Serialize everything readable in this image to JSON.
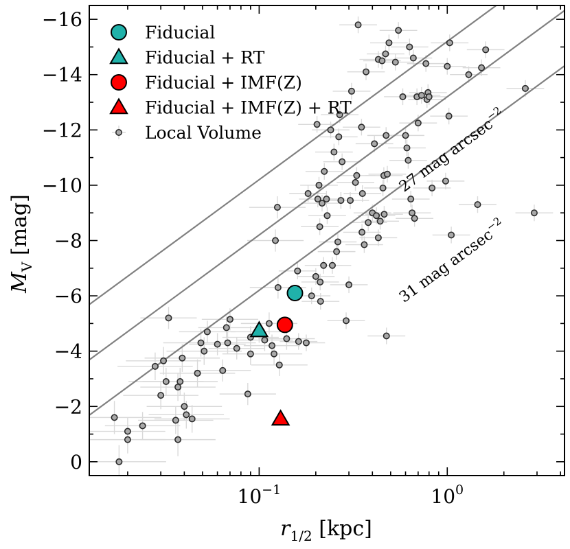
{
  "chart_data": {
    "type": "scatter",
    "xlabel_main": "r",
    "xlabel_sub": "1/2",
    "xlabel_unit": "[kpc]",
    "ylabel_main": "M",
    "ylabel_sub": "V",
    "ylabel_unit": "[mag]",
    "x_scale": "log",
    "xlim": [
      0.0125,
      4.2
    ],
    "ylim": [
      0.5,
      -16.5
    ],
    "y_ticks_major": [
      -16,
      -14,
      -12,
      -10,
      -8,
      -6,
      -4,
      -2,
      0
    ],
    "y_tick_labels": [
      "−16",
      "−14",
      "−12",
      "−10",
      "−8",
      "−6",
      "−4",
      "−2",
      "0"
    ],
    "x_ticks_major": [
      0.1,
      1.0
    ],
    "x_tick_labels": [
      {
        "base": "10",
        "exp": "−1"
      },
      {
        "base": "10",
        "exp": "0"
      }
    ],
    "legend_position": "top-left",
    "legend": [
      {
        "label": "Fiducial",
        "marker": "circle",
        "color": "#20b2aa"
      },
      {
        "label": "Fiducial + RT",
        "marker": "triangle",
        "color": "#20b2aa"
      },
      {
        "label": "Fiducial + IMF(Z)",
        "marker": "circle",
        "color": "#ff0000"
      },
      {
        "label": "Fiducial + IMF(Z) + RT",
        "marker": "triangle",
        "color": "#ff0000"
      },
      {
        "label": "Local Volume",
        "marker": "small-circle",
        "color": "#aaaaaa"
      }
    ],
    "highlight_points": [
      {
        "name": "Fiducial",
        "x": 0.155,
        "y": -6.1,
        "marker": "circle",
        "color": "#20b2aa"
      },
      {
        "name": "Fiducial + RT",
        "x": 0.1,
        "y": -4.75,
        "marker": "triangle",
        "color": "#20b2aa"
      },
      {
        "name": "Fiducial + IMF(Z)",
        "x": 0.137,
        "y": -4.95,
        "marker": "circle",
        "color": "#ff0000"
      },
      {
        "name": "Fiducial + IMF(Z) + RT",
        "x": 0.13,
        "y": -1.55,
        "marker": "triangle",
        "color": "#ff0000"
      }
    ],
    "reference_lines": [
      {
        "slope_per_dex": -5,
        "m_at_r1": -15.2,
        "label": ""
      },
      {
        "slope_per_dex": -5,
        "m_at_r1": -13.2,
        "label": "27 mag arcsec",
        "label_exp": "−2",
        "label_x": 1.1,
        "label_y": -11.1
      },
      {
        "slope_per_dex": -5,
        "m_at_r1": -11.2,
        "label": "31 mag arcsec",
        "label_exp": "−2",
        "label_x": 1.1,
        "label_y": -7.1
      }
    ],
    "local_volume": [
      [
        0.017,
        -1.6,
        0.25,
        0.6
      ],
      [
        0.018,
        0.0,
        0.25,
        0.6
      ],
      [
        0.02,
        -1.1,
        0.2,
        0.5
      ],
      [
        0.02,
        -0.8,
        0.2,
        0.5
      ],
      [
        0.024,
        -1.3,
        0.2,
        0.5
      ],
      [
        0.028,
        -3.45,
        0.2,
        0.5
      ],
      [
        0.03,
        -2.4,
        0.2,
        0.5
      ],
      [
        0.031,
        -3.65,
        0.2,
        0.5
      ],
      [
        0.032,
        -2.9,
        0.2,
        0.5
      ],
      [
        0.033,
        -5.2,
        0.15,
        0.4
      ],
      [
        0.036,
        -1.5,
        0.2,
        0.5
      ],
      [
        0.037,
        -2.7,
        0.2,
        0.5
      ],
      [
        0.037,
        -0.8,
        0.2,
        0.6
      ],
      [
        0.038,
        -2.9,
        0.2,
        0.5
      ],
      [
        0.039,
        -3.75,
        0.2,
        0.5
      ],
      [
        0.04,
        -2.0,
        0.2,
        0.5
      ],
      [
        0.041,
        -1.7,
        0.2,
        0.5
      ],
      [
        0.044,
        -1.55,
        0.2,
        0.5
      ],
      [
        0.047,
        -3.2,
        0.2,
        0.5
      ],
      [
        0.049,
        -4.3,
        0.2,
        0.5
      ],
      [
        0.051,
        -4.0,
        0.2,
        0.5
      ],
      [
        0.053,
        -4.7,
        0.15,
        0.4
      ],
      [
        0.06,
        -4.25,
        0.15,
        0.4
      ],
      [
        0.064,
        -3.3,
        0.15,
        0.4
      ],
      [
        0.067,
        -4.85,
        0.15,
        0.4
      ],
      [
        0.068,
        -4.3,
        0.15,
        0.4
      ],
      [
        0.07,
        -5.15,
        0.15,
        0.4
      ],
      [
        0.076,
        -4.1,
        0.15,
        0.4
      ],
      [
        0.087,
        -2.45,
        0.15,
        0.4
      ],
      [
        0.09,
        -3.9,
        0.15,
        0.4
      ],
      [
        0.09,
        -4.5,
        0.15,
        0.4
      ],
      [
        0.1,
        -4.7,
        0.15,
        0.4
      ],
      [
        0.107,
        -4.4,
        0.15,
        0.4
      ],
      [
        0.113,
        -5.0,
        0.15,
        0.4
      ],
      [
        0.117,
        -4.2,
        0.15,
        0.4
      ],
      [
        0.12,
        -3.9,
        0.15,
        0.4
      ],
      [
        0.122,
        -8.0,
        0.15,
        0.4
      ],
      [
        0.125,
        -9.2,
        0.15,
        0.4
      ],
      [
        0.126,
        -6.3,
        0.15,
        0.4
      ],
      [
        0.128,
        -3.5,
        0.15,
        0.4
      ],
      [
        0.14,
        -4.45,
        0.15,
        0.4
      ],
      [
        0.16,
        -6.9,
        0.1,
        0.3
      ],
      [
        0.162,
        -4.35,
        0.1,
        0.3
      ],
      [
        0.178,
        -4.3,
        0.1,
        0.3
      ],
      [
        0.182,
        -9.7,
        0.1,
        0.3
      ],
      [
        0.19,
        -6.0,
        0.1,
        0.3
      ],
      [
        0.2,
        -6.7,
        0.1,
        0.3
      ],
      [
        0.203,
        -12.2,
        0.1,
        0.3
      ],
      [
        0.205,
        -9.5,
        0.1,
        0.3
      ],
      [
        0.208,
        -10.0,
        0.1,
        0.3
      ],
      [
        0.21,
        -8.5,
        0.1,
        0.3
      ],
      [
        0.211,
        -6.5,
        0.1,
        0.3
      ],
      [
        0.212,
        -5.8,
        0.1,
        0.3
      ],
      [
        0.216,
        -9.35,
        0.1,
        0.3
      ],
      [
        0.22,
        -7.1,
        0.1,
        0.3
      ],
      [
        0.222,
        -10.5,
        0.1,
        0.3
      ],
      [
        0.228,
        -9.5,
        0.1,
        0.3
      ],
      [
        0.23,
        -8.9,
        0.1,
        0.3
      ],
      [
        0.24,
        -12.0,
        0.1,
        0.3
      ],
      [
        0.245,
        -7.1,
        0.1,
        0.3
      ],
      [
        0.25,
        -11.2,
        0.1,
        0.3
      ],
      [
        0.258,
        -7.6,
        0.1,
        0.3
      ],
      [
        0.262,
        -7.95,
        0.1,
        0.3
      ],
      [
        0.265,
        -11.75,
        0.1,
        0.3
      ],
      [
        0.268,
        -12.55,
        0.1,
        0.3
      ],
      [
        0.272,
        -9.45,
        0.1,
        0.3
      ],
      [
        0.276,
        -10.85,
        0.1,
        0.3
      ],
      [
        0.29,
        -5.1,
        0.1,
        0.3
      ],
      [
        0.3,
        -6.4,
        0.1,
        0.3
      ],
      [
        0.305,
        -9.45,
        0.1,
        0.3
      ],
      [
        0.31,
        -13.4,
        0.1,
        0.3
      ],
      [
        0.325,
        -10.1,
        0.1,
        0.3
      ],
      [
        0.33,
        -10.35,
        0.1,
        0.3
      ],
      [
        0.336,
        -15.8,
        0.1,
        0.3
      ],
      [
        0.35,
        -12.1,
        0.1,
        0.3
      ],
      [
        0.352,
        -8.3,
        0.1,
        0.3
      ],
      [
        0.354,
        -9.7,
        0.1,
        0.3
      ],
      [
        0.362,
        -7.85,
        0.1,
        0.3
      ],
      [
        0.37,
        -14.1,
        0.1,
        0.3
      ],
      [
        0.38,
        -8.65,
        0.1,
        0.3
      ],
      [
        0.4,
        -9.0,
        0.1,
        0.3
      ],
      [
        0.41,
        -11.5,
        0.1,
        0.3
      ],
      [
        0.42,
        -8.9,
        0.1,
        0.3
      ],
      [
        0.43,
        -14.55,
        0.1,
        0.3
      ],
      [
        0.43,
        -8.1,
        0.1,
        0.3
      ],
      [
        0.44,
        -8.7,
        0.1,
        0.3
      ],
      [
        0.45,
        -14.5,
        0.1,
        0.3
      ],
      [
        0.455,
        -9.9,
        0.1,
        0.3
      ],
      [
        0.46,
        -10.35,
        0.1,
        0.3
      ],
      [
        0.462,
        -8.95,
        0.1,
        0.3
      ],
      [
        0.47,
        -14.75,
        0.1,
        0.3
      ],
      [
        0.473,
        -11.8,
        0.1,
        0.3
      ],
      [
        0.475,
        -4.55,
        0.1,
        0.3
      ],
      [
        0.48,
        -10.4,
        0.1,
        0.3
      ],
      [
        0.49,
        -15.15,
        0.1,
        0.3
      ],
      [
        0.53,
        -14.45,
        0.1,
        0.3
      ],
      [
        0.55,
        -15.6,
        0.1,
        0.3
      ],
      [
        0.58,
        -13.2,
        0.1,
        0.3
      ],
      [
        0.6,
        -11.8,
        0.1,
        0.3
      ],
      [
        0.61,
        -11.35,
        0.1,
        0.3
      ],
      [
        0.62,
        -10.9,
        0.1,
        0.3
      ],
      [
        0.63,
        -15.0,
        0.1,
        0.3
      ],
      [
        0.64,
        -9.5,
        0.1,
        0.3
      ],
      [
        0.65,
        -9.0,
        0.1,
        0.3
      ],
      [
        0.66,
        -14.6,
        0.1,
        0.3
      ],
      [
        0.67,
        -8.8,
        0.1,
        0.3
      ],
      [
        0.69,
        -13.2,
        0.1,
        0.3
      ],
      [
        0.7,
        -12.25,
        0.1,
        0.3
      ],
      [
        0.73,
        -13.25,
        0.1,
        0.3
      ],
      [
        0.77,
        -14.4,
        0.1,
        0.3
      ],
      [
        0.78,
        -13.1,
        0.1,
        0.3
      ],
      [
        0.79,
        -13.35,
        0.1,
        0.3
      ],
      [
        0.8,
        -13.2,
        0.1,
        0.3
      ],
      [
        0.83,
        -9.9,
        0.1,
        0.3
      ],
      [
        0.98,
        -10.15,
        0.1,
        0.3
      ],
      [
        1.0,
        -14.3,
        0.1,
        0.3
      ],
      [
        1.02,
        -12.5,
        0.1,
        0.3
      ],
      [
        1.03,
        -15.15,
        0.1,
        0.3
      ],
      [
        1.05,
        -8.2,
        0.1,
        0.3
      ],
      [
        1.3,
        -14.0,
        0.1,
        0.3
      ],
      [
        1.45,
        -9.3,
        0.1,
        0.3
      ],
      [
        1.52,
        -14.25,
        0.1,
        0.3
      ],
      [
        1.6,
        -14.9,
        0.1,
        0.3
      ],
      [
        2.6,
        -13.5,
        0.1,
        0.3
      ],
      [
        2.9,
        -9.0,
        0.1,
        0.3
      ]
    ]
  }
}
